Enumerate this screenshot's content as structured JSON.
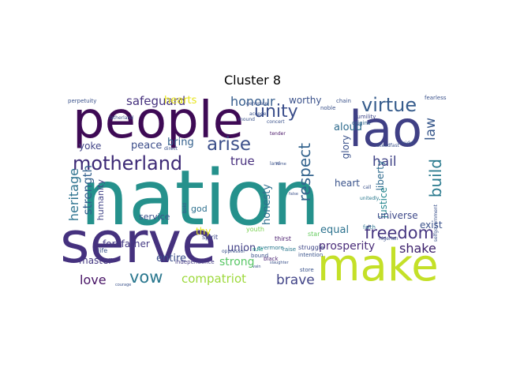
{
  "title": "Cluster 8",
  "words": [
    {
      "text": "nation",
      "color": "#25918c",
      "weight": 10,
      "orient": "h"
    },
    {
      "text": "serve",
      "color": "#45317e",
      "weight": 9,
      "orient": "h"
    },
    {
      "text": "people",
      "color": "#3e0a55",
      "weight": 8.4,
      "orient": "h"
    },
    {
      "text": "make",
      "color": "#c4e028",
      "weight": 8,
      "orient": "h"
    },
    {
      "text": "lao",
      "color": "#3f3f85",
      "weight": 7.8,
      "orient": "h"
    },
    {
      "text": "motherland",
      "color": "#3d2a76",
      "weight": 4.2,
      "orient": "h"
    },
    {
      "text": "virtue",
      "color": "#365c8c",
      "weight": 4,
      "orient": "h"
    },
    {
      "text": "unity",
      "color": "#3a4d8a",
      "weight": 3.8,
      "orient": "h"
    },
    {
      "text": "freedom",
      "color": "#463680",
      "weight": 3.8,
      "orient": "h"
    },
    {
      "text": "arise",
      "color": "#3c4f8a",
      "weight": 3.6,
      "orient": "h"
    },
    {
      "text": "respect",
      "color": "#33638d",
      "weight": 3.4,
      "orient": "v"
    },
    {
      "text": "build",
      "color": "#2a7a8e",
      "weight": 3.4,
      "orient": "v"
    },
    {
      "text": "vow",
      "color": "#2a778e",
      "weight": 3.6,
      "orient": "h"
    },
    {
      "text": "brave",
      "color": "#414487",
      "weight": 3,
      "orient": "h"
    },
    {
      "text": "compatriot",
      "color": "#9dd93b",
      "weight": 2.8,
      "orient": "h"
    },
    {
      "text": "prosperity",
      "color": "#4b2e7a",
      "weight": 2.6,
      "orient": "h"
    },
    {
      "text": "hail",
      "color": "#414487",
      "weight": 3,
      "orient": "h"
    },
    {
      "text": "law",
      "color": "#37578b",
      "weight": 3,
      "orient": "v"
    },
    {
      "text": "heritage",
      "color": "#2c728e",
      "weight": 2.6,
      "orient": "v"
    },
    {
      "text": "strength",
      "color": "#34618d",
      "weight": 2.4,
      "orient": "v"
    },
    {
      "text": "honour",
      "color": "#365d8d",
      "weight": 2.6,
      "orient": "h"
    },
    {
      "text": "safeguard",
      "color": "#46327e",
      "weight": 2.4,
      "orient": "h"
    },
    {
      "text": "love",
      "color": "#471365",
      "weight": 2.6,
      "orient": "h"
    },
    {
      "text": "true",
      "color": "#472f7d",
      "weight": 2.6,
      "orient": "h"
    },
    {
      "text": "shake",
      "color": "#3b1f6a",
      "weight": 2.6,
      "orient": "h"
    },
    {
      "text": "union",
      "color": "#423f85",
      "weight": 2.2,
      "orient": "h"
    },
    {
      "text": "strong",
      "color": "#58c765",
      "weight": 2.4,
      "orient": "h"
    },
    {
      "text": "equal",
      "color": "#2c728e",
      "weight": 2.4,
      "orient": "h"
    },
    {
      "text": "entire",
      "color": "#3c4f8a",
      "weight": 2.2,
      "orient": "h"
    },
    {
      "text": "peace",
      "color": "#3d4e8a",
      "weight": 2.2,
      "orient": "h"
    },
    {
      "text": "bring",
      "color": "#34618d",
      "weight": 2.2,
      "orient": "h"
    },
    {
      "text": "aloud",
      "color": "#2f6c8e",
      "weight": 2.2,
      "orient": "h"
    },
    {
      "text": "heart",
      "color": "#3a538b",
      "weight": 2,
      "orient": "h"
    },
    {
      "text": "hearts",
      "color": "#e7e419",
      "weight": 2.2,
      "orient": "h"
    },
    {
      "text": "worthy",
      "color": "#3b528b",
      "weight": 2,
      "orient": "h"
    },
    {
      "text": "honesty",
      "color": "#2e6e8e",
      "weight": 2.2,
      "orient": "v"
    },
    {
      "text": "glory",
      "color": "#3b528b",
      "weight": 2,
      "orient": "v"
    },
    {
      "text": "liberty",
      "color": "#2f6b8e",
      "weight": 2,
      "orient": "v"
    },
    {
      "text": "justice",
      "color": "#24868e",
      "weight": 2,
      "orient": "v"
    },
    {
      "text": "exist",
      "color": "#3b528b",
      "weight": 2,
      "orient": "h"
    },
    {
      "text": "universe",
      "color": "#3e4989",
      "weight": 2,
      "orient": "h"
    },
    {
      "text": "master",
      "color": "#453882",
      "weight": 2,
      "orient": "h"
    },
    {
      "text": "humanity",
      "color": "#414487",
      "weight": 1.7,
      "orient": "v"
    },
    {
      "text": "forefather",
      "color": "#443983",
      "weight": 1.8,
      "orient": "h"
    },
    {
      "text": "god",
      "color": "#2d708e",
      "weight": 1.8,
      "orient": "h"
    },
    {
      "text": "thy",
      "color": "#e2e418",
      "weight": 2,
      "orient": "h"
    },
    {
      "text": "yoke",
      "color": "#414487",
      "weight": 2,
      "orient": "h"
    },
    {
      "text": "service",
      "color": "#3b528b",
      "weight": 1.7,
      "orient": "h"
    },
    {
      "text": "youth",
      "color": "#7ad151",
      "weight": 1.3,
      "orient": "h"
    },
    {
      "text": "spirit",
      "color": "#3e4989",
      "weight": 1.3,
      "orient": "h"
    },
    {
      "text": "struggle",
      "color": "#3f4788",
      "weight": 1.3,
      "orient": "h"
    },
    {
      "text": "thirst",
      "color": "#481a6c",
      "weight": 1.3,
      "orient": "h"
    },
    {
      "text": "star",
      "color": "#65cb5e",
      "weight": 1.3,
      "orient": "h"
    },
    {
      "text": "independence",
      "color": "#443a83",
      "weight": 1.2,
      "orient": "h"
    },
    {
      "text": "evermore",
      "color": "#2a788e",
      "weight": 1.1,
      "orient": "h"
    },
    {
      "text": "raise",
      "color": "#2a788e",
      "weight": 1.1,
      "orient": "h"
    },
    {
      "text": "life",
      "color": "#3b528b",
      "weight": 1.2,
      "orient": "h"
    },
    {
      "text": "rule",
      "color": "#1f9a8a",
      "weight": 1.1,
      "orient": "h"
    },
    {
      "text": "bound",
      "color": "#3b528b",
      "weight": 1.1,
      "orient": "h"
    },
    {
      "text": "black",
      "color": "#481f70",
      "weight": 1.1,
      "orient": "h"
    },
    {
      "text": "store",
      "color": "#3a538b",
      "weight": 1.1,
      "orient": "h"
    },
    {
      "text": "intention",
      "color": "#3a538b",
      "weight": 1,
      "orient": "h"
    },
    {
      "text": "faith",
      "color": "#2c738e",
      "weight": 1,
      "orient": "h"
    },
    {
      "text": "chain",
      "color": "#3b528b",
      "weight": 1,
      "orient": "h"
    },
    {
      "text": "noble",
      "color": "#3b528b",
      "weight": 1,
      "orient": "h"
    },
    {
      "text": "origins",
      "color": "#31688e",
      "weight": 1,
      "orient": "h"
    },
    {
      "text": "humility",
      "color": "#3f4788",
      "weight": 1,
      "orient": "h"
    },
    {
      "text": "perpetuity",
      "color": "#3b528b",
      "weight": 1,
      "orient": "h"
    },
    {
      "text": "fearless",
      "color": "#3b528b",
      "weight": 1,
      "orient": "h"
    },
    {
      "text": "tender",
      "color": "#481567",
      "weight": 0.9,
      "orient": "h"
    },
    {
      "text": "mound",
      "color": "#3b528b",
      "weight": 0.9,
      "orient": "h"
    },
    {
      "text": "fatherland",
      "color": "#3b528b",
      "weight": 0.9,
      "orient": "h"
    },
    {
      "text": "midst",
      "color": "#3b528b",
      "weight": 0.9,
      "orient": "h"
    },
    {
      "text": "steadfast",
      "color": "#3b528b",
      "weight": 0.9,
      "orient": "h"
    },
    {
      "text": "direct",
      "color": "#3b528b",
      "weight": 0.9,
      "orient": "h"
    },
    {
      "text": "generate",
      "color": "#3b528b",
      "weight": 0.8,
      "orient": "h"
    },
    {
      "text": "concert",
      "color": "#3b528b",
      "weight": 0.8,
      "orient": "h"
    },
    {
      "text": "accede",
      "color": "#3b528b",
      "weight": 0.8,
      "orient": "h"
    },
    {
      "text": "call",
      "color": "#3b528b",
      "weight": 0.8,
      "orient": "h"
    },
    {
      "text": "unitedly",
      "color": "#2a788e",
      "weight": 0.8,
      "orient": "h"
    },
    {
      "text": "selfgovernment",
      "color": "#3b528b",
      "weight": 0.8,
      "orient": "v"
    },
    {
      "text": "bold",
      "color": "#3b528b",
      "weight": 0.8,
      "orient": "v"
    },
    {
      "text": "oppressor",
      "color": "#3b528b",
      "weight": 0.8,
      "orient": "h"
    },
    {
      "text": "nigerian",
      "color": "#3b528b",
      "weight": 0.8,
      "orient": "h"
    },
    {
      "text": "land",
      "color": "#3b528b",
      "weight": 0.8,
      "orient": "h"
    },
    {
      "text": "fame",
      "color": "#3b528b",
      "weight": 0.7,
      "orient": "h"
    },
    {
      "text": "courage",
      "color": "#3b528b",
      "weight": 0.7,
      "orient": "h"
    },
    {
      "text": "slaughter",
      "color": "#3b528b",
      "weight": 0.7,
      "orient": "h"
    },
    {
      "text": "false",
      "color": "#3b528b",
      "weight": 0.7,
      "orient": "h"
    },
    {
      "text": "vain",
      "color": "#3b528b",
      "weight": 0.7,
      "orient": "h"
    }
  ]
}
